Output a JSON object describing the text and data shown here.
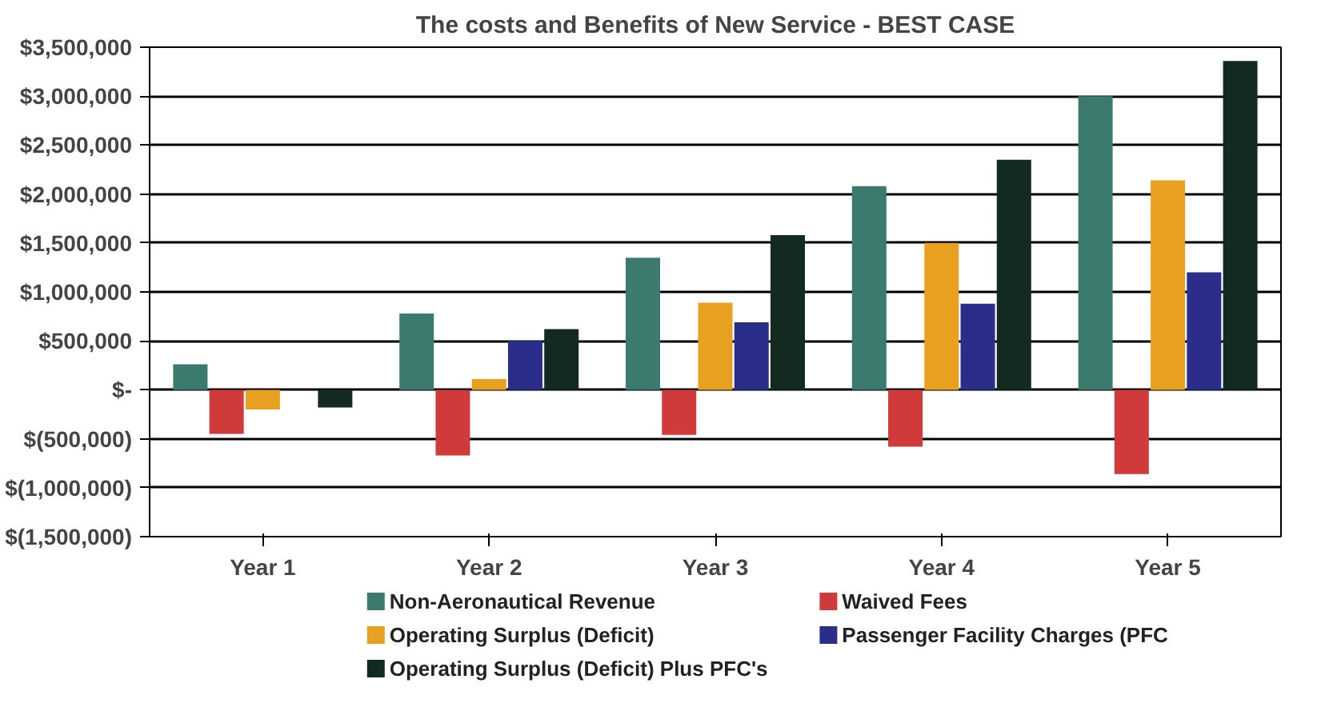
{
  "chart_data": {
    "type": "bar",
    "title": "The costs and Benefits of New Service - BEST CASE",
    "categories": [
      "Year 1",
      "Year 2",
      "Year 3",
      "Year 4",
      "Year 5"
    ],
    "series": [
      {
        "name": "Non-Aeronautical Revenue",
        "color": "#3c7a6e",
        "values": [
          260000,
          780000,
          1350000,
          2080000,
          3000000
        ]
      },
      {
        "name": "Waived Fees",
        "color": "#d03a3a",
        "values": [
          -450000,
          -670000,
          -460000,
          -580000,
          -860000
        ]
      },
      {
        "name": "Operating Surplus (Deficit)",
        "color": "#e8a020",
        "values": [
          -200000,
          110000,
          890000,
          1500000,
          2140000
        ]
      },
      {
        "name": "Passenger Facility Charges (PFC",
        "color": "#2a2e8a",
        "values": [
          0,
          500000,
          690000,
          880000,
          1200000
        ]
      },
      {
        "name": "Operating Surplus (Deficit) Plus PFC's",
        "color": "#132a20",
        "values": [
          -180000,
          620000,
          1580000,
          2350000,
          3360000
        ]
      }
    ],
    "ylim": [
      -1500000,
      3500000
    ],
    "yticks": [
      {
        "value": -1500000,
        "label": "$(1,500,000)"
      },
      {
        "value": -1000000,
        "label": "$(1,000,000)"
      },
      {
        "value": -500000,
        "label": "$(500,000)"
      },
      {
        "value": 0,
        "label": "$-"
      },
      {
        "value": 500000,
        "label": "$500,000"
      },
      {
        "value": 1000000,
        "label": "$1,000,000"
      },
      {
        "value": 1500000,
        "label": "$1,500,000"
      },
      {
        "value": 2000000,
        "label": "$2,000,000"
      },
      {
        "value": 2500000,
        "label": "$2,500,000"
      },
      {
        "value": 3000000,
        "label": "$3,000,000"
      },
      {
        "value": 3500000,
        "label": "$3,500,000"
      }
    ],
    "grid": "y",
    "legend": "bottom"
  }
}
